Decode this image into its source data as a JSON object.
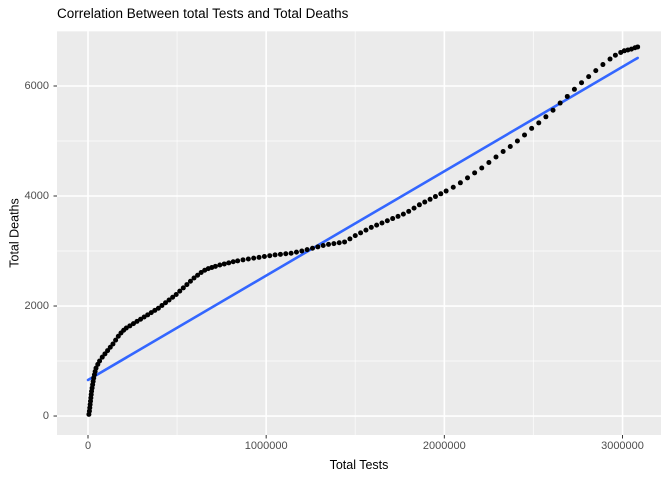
{
  "chart_data": {
    "type": "scatter",
    "title": "Correlation Between total Tests and Total Deaths",
    "xlabel": "Total Tests",
    "ylabel": "Total Deaths",
    "legend": "none",
    "grid": true,
    "xlim": [
      -174000,
      3216000
    ],
    "ylim": [
      -345,
      7000
    ],
    "x_ticks": [
      0,
      1000000,
      2000000,
      3000000
    ],
    "x_tick_labels": [
      "0",
      "1000000",
      "2000000",
      "3000000"
    ],
    "x_minor_ticks": [
      500000,
      1500000,
      2500000
    ],
    "y_ticks": [
      0,
      2000,
      4000,
      6000
    ],
    "y_tick_labels": [
      "0",
      "2000",
      "4000",
      "6000"
    ],
    "y_minor_ticks": [
      1000,
      3000,
      5000,
      7000
    ],
    "trend_line": {
      "method": "lm",
      "x1": 0,
      "y1": 655,
      "x2": 3085000,
      "y2": 6510
    },
    "colors": {
      "panel_bg": "#EBEBEB",
      "major_grid": "#FFFFFF",
      "minor_grid": "rgba(255,255,255,0.65)",
      "point": "#000000",
      "trend": "#3366FF",
      "tick_mark": "#333333",
      "tick_label": "#4D4D4D"
    },
    "points": [
      [
        5000,
        30
      ],
      [
        8000,
        90
      ],
      [
        10000,
        150
      ],
      [
        12000,
        210
      ],
      [
        14000,
        270
      ],
      [
        16000,
        330
      ],
      [
        18000,
        390
      ],
      [
        20000,
        450
      ],
      [
        23000,
        510
      ],
      [
        26000,
        570
      ],
      [
        29000,
        630
      ],
      [
        32000,
        690
      ],
      [
        36000,
        750
      ],
      [
        40000,
        810
      ],
      [
        45000,
        870
      ],
      [
        55000,
        940
      ],
      [
        65000,
        1000
      ],
      [
        80000,
        1070
      ],
      [
        95000,
        1130
      ],
      [
        110000,
        1190
      ],
      [
        125000,
        1250
      ],
      [
        140000,
        1310
      ],
      [
        155000,
        1380
      ],
      [
        170000,
        1450
      ],
      [
        185000,
        1510
      ],
      [
        200000,
        1560
      ],
      [
        215000,
        1600
      ],
      [
        235000,
        1640
      ],
      [
        255000,
        1680
      ],
      [
        275000,
        1720
      ],
      [
        295000,
        1760
      ],
      [
        315000,
        1800
      ],
      [
        335000,
        1840
      ],
      [
        355000,
        1880
      ],
      [
        375000,
        1920
      ],
      [
        395000,
        1960
      ],
      [
        415000,
        2010
      ],
      [
        435000,
        2060
      ],
      [
        455000,
        2110
      ],
      [
        475000,
        2160
      ],
      [
        495000,
        2210
      ],
      [
        515000,
        2270
      ],
      [
        535000,
        2330
      ],
      [
        555000,
        2390
      ],
      [
        575000,
        2450
      ],
      [
        595000,
        2510
      ],
      [
        615000,
        2560
      ],
      [
        635000,
        2610
      ],
      [
        655000,
        2650
      ],
      [
        675000,
        2680
      ],
      [
        695000,
        2700
      ],
      [
        715000,
        2720
      ],
      [
        740000,
        2745
      ],
      [
        765000,
        2765
      ],
      [
        790000,
        2785
      ],
      [
        815000,
        2805
      ],
      [
        840000,
        2820
      ],
      [
        870000,
        2840
      ],
      [
        900000,
        2855
      ],
      [
        930000,
        2870
      ],
      [
        960000,
        2885
      ],
      [
        990000,
        2900
      ],
      [
        1020000,
        2915
      ],
      [
        1050000,
        2930
      ],
      [
        1080000,
        2940
      ],
      [
        1110000,
        2950
      ],
      [
        1140000,
        2960
      ],
      [
        1170000,
        2980
      ],
      [
        1200000,
        3000
      ],
      [
        1230000,
        3025
      ],
      [
        1260000,
        3050
      ],
      [
        1290000,
        3075
      ],
      [
        1320000,
        3100
      ],
      [
        1350000,
        3120
      ],
      [
        1380000,
        3135
      ],
      [
        1410000,
        3150
      ],
      [
        1440000,
        3165
      ],
      [
        1470000,
        3220
      ],
      [
        1500000,
        3280
      ],
      [
        1530000,
        3330
      ],
      [
        1560000,
        3380
      ],
      [
        1590000,
        3430
      ],
      [
        1620000,
        3470
      ],
      [
        1650000,
        3510
      ],
      [
        1680000,
        3550
      ],
      [
        1710000,
        3590
      ],
      [
        1740000,
        3630
      ],
      [
        1770000,
        3670
      ],
      [
        1800000,
        3720
      ],
      [
        1830000,
        3780
      ],
      [
        1860000,
        3840
      ],
      [
        1890000,
        3890
      ],
      [
        1920000,
        3940
      ],
      [
        1950000,
        3990
      ],
      [
        1980000,
        4040
      ],
      [
        2010000,
        4090
      ],
      [
        2050000,
        4160
      ],
      [
        2090000,
        4240
      ],
      [
        2130000,
        4330
      ],
      [
        2170000,
        4420
      ],
      [
        2210000,
        4510
      ],
      [
        2250000,
        4610
      ],
      [
        2290000,
        4710
      ],
      [
        2330000,
        4810
      ],
      [
        2370000,
        4900
      ],
      [
        2410000,
        5000
      ],
      [
        2450000,
        5110
      ],
      [
        2490000,
        5230
      ],
      [
        2530000,
        5330
      ],
      [
        2570000,
        5440
      ],
      [
        2610000,
        5560
      ],
      [
        2650000,
        5690
      ],
      [
        2690000,
        5810
      ],
      [
        2730000,
        5940
      ],
      [
        2770000,
        6060
      ],
      [
        2810000,
        6170
      ],
      [
        2850000,
        6280
      ],
      [
        2890000,
        6390
      ],
      [
        2930000,
        6490
      ],
      [
        2960000,
        6560
      ],
      [
        2990000,
        6610
      ],
      [
        3010000,
        6640
      ],
      [
        3030000,
        6655
      ],
      [
        3050000,
        6670
      ],
      [
        3070000,
        6695
      ],
      [
        3085000,
        6710
      ]
    ]
  }
}
